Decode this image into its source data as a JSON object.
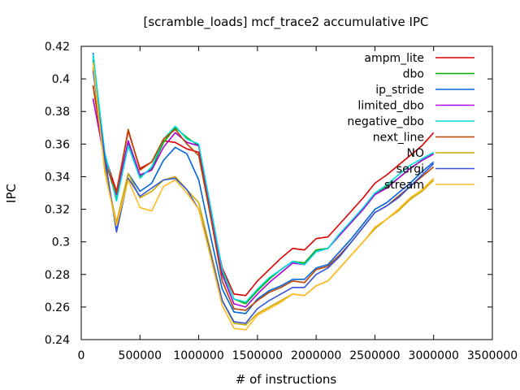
{
  "chart_data": {
    "type": "line",
    "title": "[scramble_loads] mcf_trace2 accumulative IPC",
    "xlabel": "# of instructions",
    "ylabel": "IPC",
    "xlim": [
      0,
      3500000
    ],
    "ylim": [
      0.24,
      0.42
    ],
    "xticks": [
      0,
      500000,
      1000000,
      1500000,
      2000000,
      2500000,
      3000000,
      3500000
    ],
    "xtick_labels": [
      "0",
      "500000",
      "1000000",
      "1500000",
      "2000000",
      "2500000",
      "3000000",
      "3500000"
    ],
    "yticks": [
      0.24,
      0.26,
      0.28,
      0.3,
      0.32,
      0.34,
      0.36,
      0.38,
      0.4,
      0.42
    ],
    "ytick_labels": [
      "0.24",
      "0.26",
      "0.28",
      "0.3",
      "0.32",
      "0.34",
      "0.36",
      "0.38",
      "0.4",
      "0.42"
    ],
    "grid": false,
    "legend_position": "top-right",
    "x": [
      100000,
      200000,
      300000,
      400000,
      500000,
      600000,
      700000,
      800000,
      900000,
      1000000,
      1100000,
      1200000,
      1300000,
      1400000,
      1500000,
      1600000,
      1700000,
      1800000,
      1900000,
      2000000,
      2100000,
      2200000,
      2300000,
      2400000,
      2500000,
      2600000,
      2700000,
      2800000,
      2900000,
      3000000
    ],
    "series": [
      {
        "name": "ampm_lite",
        "color": "#dd0000",
        "values": [
          0.396,
          0.353,
          0.331,
          0.368,
          0.345,
          0.349,
          0.362,
          0.361,
          0.357,
          0.355,
          0.318,
          0.284,
          0.268,
          0.267,
          0.276,
          0.283,
          0.29,
          0.296,
          0.295,
          0.302,
          0.303,
          0.311,
          0.319,
          0.327,
          0.336,
          0.341,
          0.347,
          0.353,
          0.359,
          0.367
        ]
      },
      {
        "name": "dbo",
        "color": "#00aa00",
        "values": [
          0.412,
          0.352,
          0.326,
          0.36,
          0.34,
          0.345,
          0.361,
          0.37,
          0.364,
          0.359,
          0.321,
          0.282,
          0.265,
          0.262,
          0.27,
          0.277,
          0.283,
          0.288,
          0.287,
          0.295,
          0.296,
          0.305,
          0.312,
          0.32,
          0.329,
          0.334,
          0.339,
          0.345,
          0.35,
          0.354
        ]
      },
      {
        "name": "ip_stride",
        "color": "#0066dd",
        "values": [
          0.416,
          0.349,
          0.307,
          0.342,
          0.331,
          0.336,
          0.35,
          0.358,
          0.354,
          0.338,
          0.304,
          0.271,
          0.257,
          0.256,
          0.265,
          0.27,
          0.273,
          0.277,
          0.277,
          0.284,
          0.286,
          0.294,
          0.302,
          0.311,
          0.32,
          0.324,
          0.33,
          0.336,
          0.343,
          0.349
        ]
      },
      {
        "name": "limited_dbo",
        "color": "#aa00dd",
        "values": [
          0.388,
          0.35,
          0.329,
          0.362,
          0.341,
          0.344,
          0.358,
          0.367,
          0.361,
          0.359,
          0.32,
          0.28,
          0.262,
          0.26,
          0.268,
          0.275,
          0.281,
          0.287,
          0.286,
          0.294,
          0.296,
          0.304,
          0.312,
          0.32,
          0.329,
          0.333,
          0.339,
          0.345,
          0.35,
          0.354
        ]
      },
      {
        "name": "negative_dbo",
        "color": "#00dddd",
        "values": [
          0.415,
          0.355,
          0.325,
          0.359,
          0.339,
          0.346,
          0.363,
          0.371,
          0.363,
          0.36,
          0.322,
          0.283,
          0.265,
          0.263,
          0.271,
          0.278,
          0.283,
          0.288,
          0.286,
          0.294,
          0.296,
          0.305,
          0.313,
          0.321,
          0.33,
          0.335,
          0.341,
          0.347,
          0.351,
          0.355
        ]
      },
      {
        "name": "next_line",
        "color": "#bb4400",
        "values": [
          0.396,
          0.349,
          0.33,
          0.369,
          0.344,
          0.349,
          0.363,
          0.369,
          0.36,
          0.353,
          0.316,
          0.276,
          0.259,
          0.258,
          0.264,
          0.269,
          0.272,
          0.276,
          0.275,
          0.283,
          0.285,
          0.292,
          0.3,
          0.309,
          0.318,
          0.322,
          0.328,
          0.334,
          0.34,
          0.346
        ]
      },
      {
        "name": "NO",
        "color": "#ccaa00",
        "values": [
          0.407,
          0.345,
          0.312,
          0.342,
          0.327,
          0.331,
          0.338,
          0.34,
          0.332,
          0.324,
          0.295,
          0.264,
          0.25,
          0.249,
          0.256,
          0.26,
          0.264,
          0.268,
          0.267,
          0.273,
          0.276,
          0.284,
          0.292,
          0.3,
          0.308,
          0.314,
          0.319,
          0.326,
          0.331,
          0.338
        ]
      },
      {
        "name": "sergi",
        "color": "#3355dd",
        "values": [
          0.405,
          0.352,
          0.306,
          0.339,
          0.328,
          0.333,
          0.338,
          0.339,
          0.332,
          0.32,
          0.293,
          0.264,
          0.251,
          0.25,
          0.259,
          0.264,
          0.268,
          0.272,
          0.272,
          0.28,
          0.284,
          0.291,
          0.3,
          0.309,
          0.318,
          0.322,
          0.327,
          0.334,
          0.341,
          0.348
        ]
      },
      {
        "name": "stream",
        "color": "#ffbb22",
        "values": [
          0.41,
          0.343,
          0.31,
          0.338,
          0.321,
          0.319,
          0.334,
          0.338,
          0.33,
          0.32,
          0.291,
          0.261,
          0.247,
          0.246,
          0.255,
          0.259,
          0.263,
          0.268,
          0.267,
          0.273,
          0.276,
          0.284,
          0.292,
          0.3,
          0.309,
          0.314,
          0.32,
          0.327,
          0.332,
          0.339
        ]
      }
    ]
  }
}
